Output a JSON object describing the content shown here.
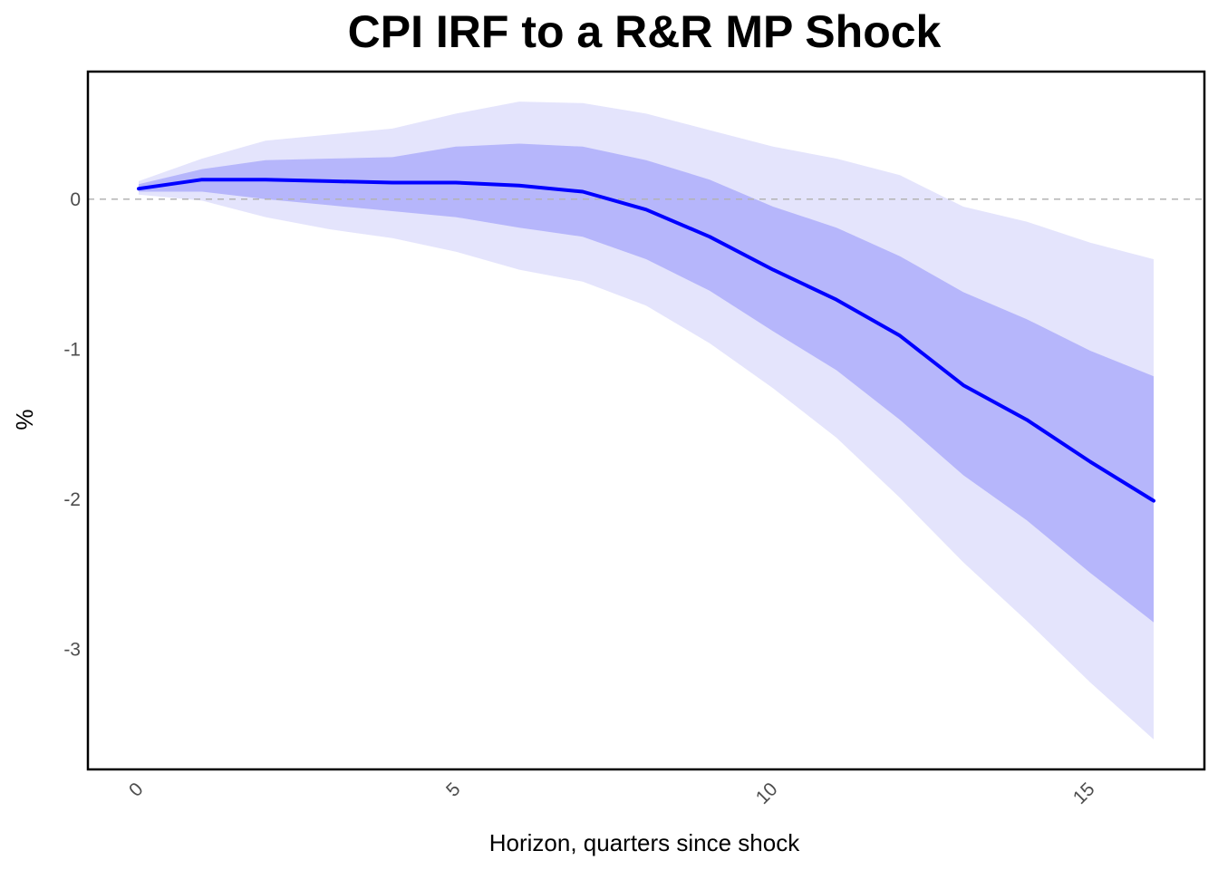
{
  "chart_data": {
    "type": "area",
    "title": "CPI IRF to a R&R MP Shock",
    "xlabel": "Horizon, quarters since shock",
    "ylabel": "%",
    "x": [
      0,
      1,
      2,
      3,
      4,
      5,
      6,
      7,
      8,
      9,
      10,
      11,
      12,
      13,
      14,
      15,
      16
    ],
    "xlim": [
      -0.8,
      16.8
    ],
    "ylim": [
      -3.8,
      0.85
    ],
    "xticks": [
      0,
      5,
      10,
      15
    ],
    "yticks": [
      0,
      -1,
      -2,
      -3
    ],
    "xtick_labels": [
      "0",
      "5",
      "10",
      "15"
    ],
    "ytick_labels": [
      "0",
      "-1",
      "-2",
      "-3"
    ],
    "reference_line": 0,
    "grid": false,
    "series": [
      {
        "role": "outer-band",
        "upper": [
          0.12,
          0.27,
          0.39,
          0.43,
          0.47,
          0.57,
          0.65,
          0.64,
          0.57,
          0.46,
          0.35,
          0.27,
          0.16,
          -0.05,
          -0.15,
          -0.29,
          -0.4
        ],
        "lower": [
          0.03,
          -0.01,
          -0.12,
          -0.2,
          -0.26,
          -0.35,
          -0.47,
          -0.55,
          -0.71,
          -0.96,
          -1.26,
          -1.59,
          -1.99,
          -2.42,
          -2.81,
          -3.22,
          -3.6
        ],
        "color": "#e4e4fc"
      },
      {
        "role": "inner-band",
        "upper": [
          0.1,
          0.2,
          0.26,
          0.27,
          0.28,
          0.35,
          0.37,
          0.35,
          0.26,
          0.13,
          -0.05,
          -0.19,
          -0.38,
          -0.62,
          -0.8,
          -1.01,
          -1.18
        ],
        "lower": [
          0.05,
          0.05,
          0.0,
          -0.04,
          -0.08,
          -0.12,
          -0.19,
          -0.25,
          -0.4,
          -0.61,
          -0.88,
          -1.14,
          -1.47,
          -1.84,
          -2.14,
          -2.49,
          -2.82
        ],
        "color": "#b6b6fb"
      },
      {
        "role": "point-estimate",
        "values": [
          0.07,
          0.13,
          0.13,
          0.12,
          0.11,
          0.11,
          0.09,
          0.05,
          -0.07,
          -0.25,
          -0.47,
          -0.67,
          -0.91,
          -1.24,
          -1.47,
          -1.75,
          -2.01
        ],
        "color": "#0000ff"
      }
    ]
  }
}
